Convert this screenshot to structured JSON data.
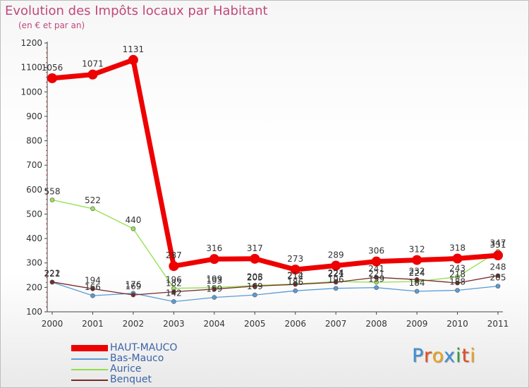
{
  "header": {
    "title": "Evolution des Impôts locaux par Habitant",
    "subtitle": "(en € et par an)"
  },
  "chart_data": {
    "type": "line",
    "title": "Evolution des Impôts locaux par Habitant",
    "subtitle": "(en € et par an)",
    "xlabel": "",
    "ylabel": "",
    "ylim": [
      100,
      1200
    ],
    "yticks": [
      100,
      200,
      300,
      400,
      500,
      600,
      700,
      800,
      900,
      1000,
      1100,
      1200
    ],
    "grid": false,
    "legend_position": "bottom-left",
    "categories": [
      "2000",
      "2001",
      "2002",
      "2003",
      "2004",
      "2005",
      "2006",
      "2007",
      "2008",
      "2009",
      "2010",
      "2011"
    ],
    "series": [
      {
        "name": "HAUT-MAUCO",
        "color": "#ee0000",
        "values": [
          1056,
          1071,
          1131,
          287,
          316,
          317,
          273,
          289,
          306,
          312,
          318,
          331
        ]
      },
      {
        "name": "Bas-Mauco",
        "color": "#5b9bd5",
        "values": [
          221,
          166,
          176,
          142,
          159,
          169,
          186,
          196,
          199,
          184,
          188,
          205
        ]
      },
      {
        "name": "Aurice",
        "color": "#8fe04a",
        "values": [
          558,
          522,
          440,
          196,
          199,
          208,
          214,
          224,
          221,
          224,
          243,
          347
        ]
      },
      {
        "name": "Benquet",
        "color": "#7a2a2a",
        "values": [
          222,
          194,
          169,
          182,
          193,
          205,
          212,
          221,
          241,
          232,
          218,
          248
        ]
      }
    ]
  },
  "legend": [
    {
      "label": "HAUT-MAUCO"
    },
    {
      "label": "Bas-Mauco"
    },
    {
      "label": "Aurice"
    },
    {
      "label": "Benquet"
    }
  ],
  "logo": {
    "text": "Proxiti",
    "letter_colors": [
      "#3d8fd6",
      "#e84b1e",
      "#f0a316",
      "#3d8fd6",
      "#2f9e3f",
      "#e84b1e",
      "#f0a316"
    ]
  }
}
